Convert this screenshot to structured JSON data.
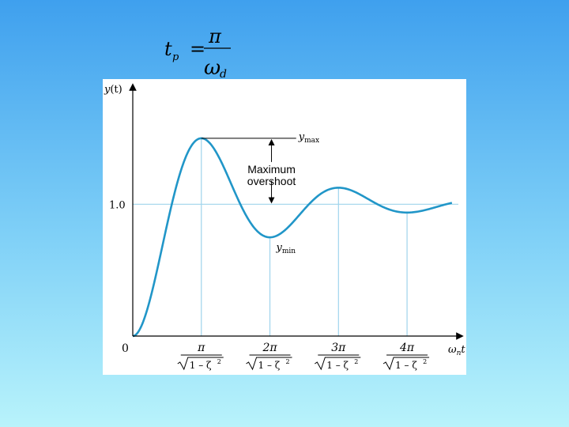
{
  "formula": {
    "lhs": "t",
    "lhs_sub": "p",
    "equals": "=",
    "numerator": "π",
    "denominator": "ω",
    "denominator_sub": "d"
  },
  "chart_data": {
    "type": "line",
    "ylabel": "y(t)",
    "xlabel": "ωnt",
    "xlabel_main": "ω",
    "xlabel_sub": "n",
    "xlabel_tail": "t",
    "ylabel_main": "y",
    "ylabel_paren": "(t)",
    "zeta": 0.215,
    "xlim": [
      0,
      15.2
    ],
    "ylim": [
      0,
      1.8
    ],
    "y_ticks": [
      {
        "value": 1.0,
        "label": "1.0"
      }
    ],
    "origin_label": "0",
    "x_ticks": [
      {
        "multiple": 1,
        "numerator": "π",
        "radicand": "1 – ζ",
        "exp": "2"
      },
      {
        "multiple": 2,
        "numerator": "2π",
        "radicand": "1 – ζ",
        "exp": "2"
      },
      {
        "multiple": 3,
        "numerator": "3π",
        "radicand": "1 – ζ",
        "exp": "2"
      },
      {
        "multiple": 4,
        "numerator": "4π",
        "radicand": "1 – ζ",
        "exp": "2"
      }
    ],
    "annotations": {
      "ymax_main": "y",
      "ymax_sub": "max",
      "ymin_main": "y",
      "ymin_sub": "min",
      "overshoot_line1": "Maximum",
      "overshoot_line2": "overshoot"
    },
    "colors": {
      "curve": "#2196c8",
      "gridlines": "#9fd4ec",
      "axes": "#000000"
    }
  }
}
